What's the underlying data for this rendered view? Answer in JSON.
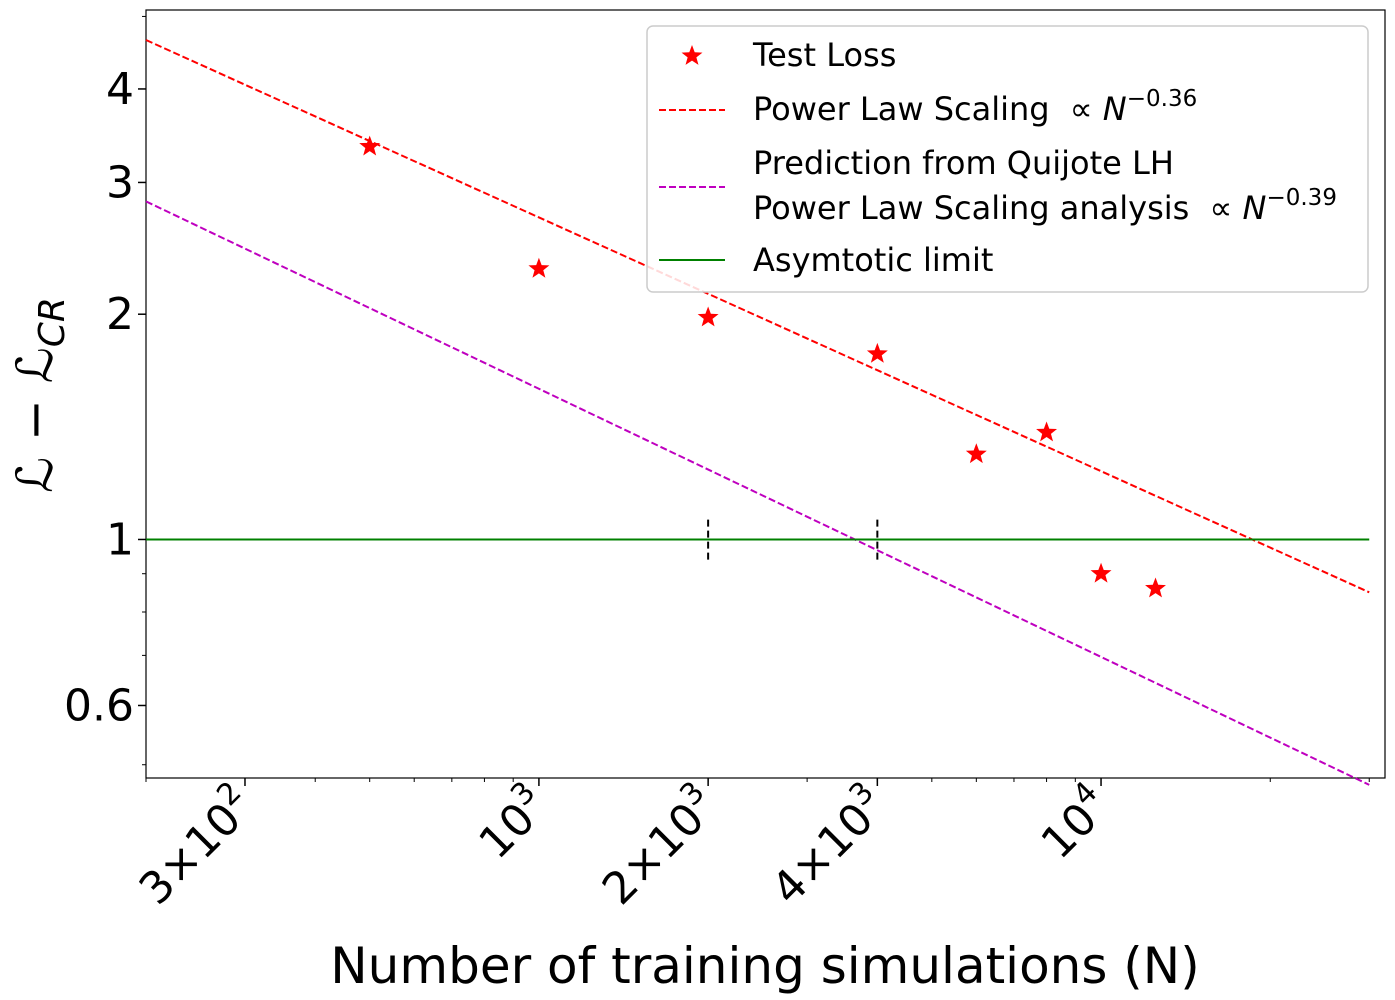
{
  "chart_data": {
    "type": "scatter",
    "xlabel": "Number of training simulations (N)",
    "ylabel_parts": {
      "base": "ℒ − ℒ",
      "sub": "CR"
    },
    "xscale": "log",
    "yscale": "log",
    "xlim": [
      200,
      32000
    ],
    "ylim": [
      0.48,
      5.1
    ],
    "x_ticks": [
      {
        "value": 300,
        "mantissa": "3×",
        "base": "10",
        "exp": "2"
      },
      {
        "value": 1000,
        "mantissa": "",
        "base": "10",
        "exp": "3"
      },
      {
        "value": 2000,
        "mantissa": "2×",
        "base": "10",
        "exp": "3"
      },
      {
        "value": 4000,
        "mantissa": "4×",
        "base": "10",
        "exp": "3"
      },
      {
        "value": 10000,
        "mantissa": "",
        "base": "10",
        "exp": "4"
      }
    ],
    "y_ticks": [
      {
        "value": 0.6,
        "label": "0.6"
      },
      {
        "value": 1,
        "label": "1"
      },
      {
        "value": 2,
        "label": "2"
      },
      {
        "value": 3,
        "label": "3"
      },
      {
        "value": 4,
        "label": "4"
      }
    ],
    "series": [
      {
        "name": "Test Loss",
        "kind": "scatter",
        "marker": "star",
        "color": "#ff0000",
        "x": [
          500,
          1000,
          2000,
          4000,
          6000,
          8000,
          10000,
          12500
        ],
        "y": [
          3.35,
          2.3,
          1.98,
          1.77,
          1.3,
          1.39,
          0.9,
          0.86
        ]
      },
      {
        "name": "Power Law Scaling",
        "name_suffix": {
          "pre": " ∝ N",
          "sup": "−0.36"
        },
        "kind": "line",
        "style": "dashed",
        "color": "#ff0000",
        "x": [
          200,
          30000
        ],
        "y": [
          4.65,
          0.85
        ]
      },
      {
        "name": "Prediction from Quijote LH",
        "name_line2": "Power Law Scaling analysis",
        "name_suffix": {
          "pre": " ∝ N",
          "sup": "−0.39"
        },
        "kind": "line",
        "style": "dashed",
        "color": "#bf00bf",
        "x": [
          200,
          30000
        ],
        "y": [
          2.83,
          0.47
        ]
      },
      {
        "name": "Asymtotic limit",
        "kind": "line",
        "style": "solid",
        "color": "#008000",
        "x": [
          200,
          30000
        ],
        "y": [
          1,
          1
        ]
      }
    ],
    "annotations": {
      "vertical_markers": [
        {
          "x": 2000,
          "y_from": 0.94,
          "y_to": 1.07,
          "color": "#000000",
          "style": "dashed"
        },
        {
          "x": 4000,
          "y_from": 0.94,
          "y_to": 1.07,
          "color": "#000000",
          "style": "dashed"
        }
      ]
    },
    "legend": {
      "position": "top-right"
    },
    "grid": false
  }
}
